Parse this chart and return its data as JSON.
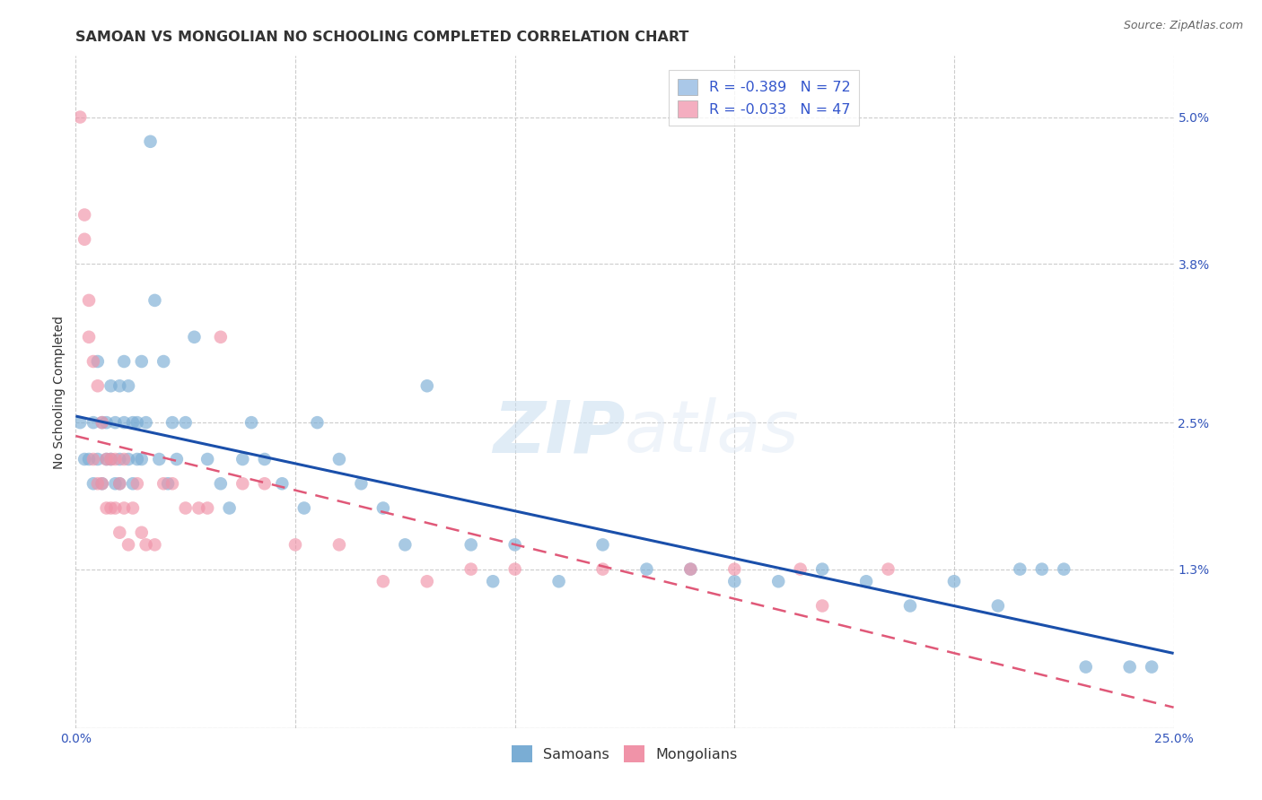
{
  "title": "SAMOAN VS MONGOLIAN NO SCHOOLING COMPLETED CORRELATION CHART",
  "source": "Source: ZipAtlas.com",
  "ylabel": "No Schooling Completed",
  "xlim": [
    0.0,
    0.25
  ],
  "ylim": [
    0.0,
    0.055
  ],
  "xticks": [
    0.0,
    0.05,
    0.1,
    0.15,
    0.2,
    0.25
  ],
  "yticks": [
    0.0,
    0.013,
    0.025,
    0.038,
    0.05
  ],
  "xticklabels": [
    "0.0%",
    "",
    "",
    "",
    "",
    "25.0%"
  ],
  "yticklabels": [
    "",
    "1.3%",
    "2.5%",
    "3.8%",
    "5.0%"
  ],
  "legend_entries": [
    {
      "label": "R = -0.389   N = 72",
      "color": "#aac8e8"
    },
    {
      "label": "R = -0.033   N = 47",
      "color": "#f4aec0"
    }
  ],
  "samoan_color": "#7aadd4",
  "mongolian_color": "#f093a8",
  "trend_samoan_color": "#1a4faa",
  "trend_mongolian_color": "#e05878",
  "background_color": "#ffffff",
  "grid_color": "#cccccc",
  "title_fontsize": 11.5,
  "axis_label_fontsize": 10,
  "tick_fontsize": 10,
  "watermark_zip": "ZIP",
  "watermark_atlas": "atlas",
  "samoan_x": [
    0.001,
    0.002,
    0.003,
    0.004,
    0.004,
    0.005,
    0.005,
    0.006,
    0.006,
    0.007,
    0.007,
    0.008,
    0.008,
    0.009,
    0.009,
    0.01,
    0.01,
    0.01,
    0.011,
    0.011,
    0.012,
    0.012,
    0.013,
    0.013,
    0.014,
    0.014,
    0.015,
    0.015,
    0.016,
    0.017,
    0.018,
    0.019,
    0.02,
    0.021,
    0.022,
    0.023,
    0.025,
    0.027,
    0.03,
    0.033,
    0.035,
    0.038,
    0.04,
    0.043,
    0.047,
    0.052,
    0.055,
    0.06,
    0.065,
    0.07,
    0.075,
    0.08,
    0.09,
    0.095,
    0.1,
    0.11,
    0.12,
    0.13,
    0.14,
    0.15,
    0.16,
    0.17,
    0.18,
    0.19,
    0.2,
    0.21,
    0.215,
    0.22,
    0.225,
    0.23,
    0.24,
    0.245
  ],
  "samoan_y": [
    0.025,
    0.022,
    0.022,
    0.025,
    0.02,
    0.03,
    0.022,
    0.025,
    0.02,
    0.025,
    0.022,
    0.028,
    0.022,
    0.025,
    0.02,
    0.028,
    0.022,
    0.02,
    0.03,
    0.025,
    0.028,
    0.022,
    0.025,
    0.02,
    0.025,
    0.022,
    0.03,
    0.022,
    0.025,
    0.048,
    0.035,
    0.022,
    0.03,
    0.02,
    0.025,
    0.022,
    0.025,
    0.032,
    0.022,
    0.02,
    0.018,
    0.022,
    0.025,
    0.022,
    0.02,
    0.018,
    0.025,
    0.022,
    0.02,
    0.018,
    0.015,
    0.028,
    0.015,
    0.012,
    0.015,
    0.012,
    0.015,
    0.013,
    0.013,
    0.012,
    0.012,
    0.013,
    0.012,
    0.01,
    0.012,
    0.01,
    0.013,
    0.013,
    0.013,
    0.005,
    0.005,
    0.005
  ],
  "mongolian_x": [
    0.001,
    0.002,
    0.002,
    0.003,
    0.003,
    0.004,
    0.004,
    0.005,
    0.005,
    0.006,
    0.006,
    0.007,
    0.007,
    0.008,
    0.008,
    0.009,
    0.009,
    0.01,
    0.01,
    0.011,
    0.011,
    0.012,
    0.013,
    0.014,
    0.015,
    0.016,
    0.018,
    0.02,
    0.022,
    0.025,
    0.028,
    0.03,
    0.033,
    0.038,
    0.043,
    0.05,
    0.06,
    0.07,
    0.08,
    0.09,
    0.1,
    0.12,
    0.14,
    0.15,
    0.165,
    0.17,
    0.185
  ],
  "mongolian_y": [
    0.05,
    0.042,
    0.04,
    0.035,
    0.032,
    0.03,
    0.022,
    0.028,
    0.02,
    0.025,
    0.02,
    0.022,
    0.018,
    0.022,
    0.018,
    0.022,
    0.018,
    0.02,
    0.016,
    0.022,
    0.018,
    0.015,
    0.018,
    0.02,
    0.016,
    0.015,
    0.015,
    0.02,
    0.02,
    0.018,
    0.018,
    0.018,
    0.032,
    0.02,
    0.02,
    0.015,
    0.015,
    0.012,
    0.012,
    0.013,
    0.013,
    0.013,
    0.013,
    0.013,
    0.013,
    0.01,
    0.013
  ]
}
